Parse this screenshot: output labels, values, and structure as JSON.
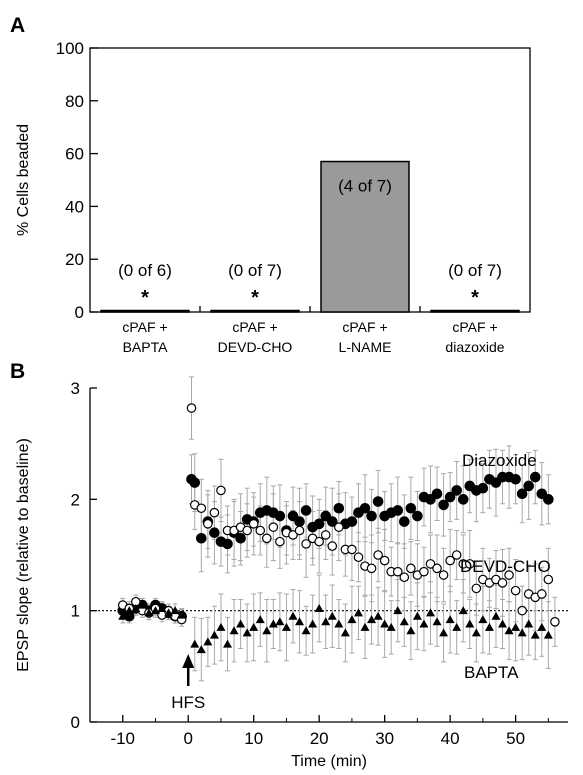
{
  "panels": {
    "a": "A",
    "b": "B"
  },
  "chart_data": [
    {
      "type": "bar",
      "panel": "A",
      "ylabel": "% Cells beaded",
      "ylim": [
        0,
        100
      ],
      "yticks": [
        "0",
        "20",
        "40",
        "60",
        "80",
        "100"
      ],
      "categories": [
        [
          "cPAF +",
          "BAPTA"
        ],
        [
          "cPAF +",
          "DEVD-CHO"
        ],
        [
          "cPAF +",
          "L-NAME"
        ],
        [
          "cPAF +",
          "diazoxide"
        ]
      ],
      "values": [
        0,
        0,
        57,
        0
      ],
      "annotations": [
        "(0 of 6)",
        "(0 of 7)",
        "(4 of 7)",
        "(0 of 7)"
      ],
      "significance": [
        "*",
        "*",
        "",
        "*"
      ],
      "colors": {
        "bar": "#9a9a9a",
        "edge": "#000000"
      }
    },
    {
      "type": "scatter",
      "panel": "B",
      "xlabel": "Time (min)",
      "ylabel": "EPSP slope (relative to baseline)",
      "xlim": [
        -15,
        58
      ],
      "ylim": [
        0,
        3
      ],
      "xticks": [
        "-10",
        "0",
        "10",
        "20",
        "30",
        "40",
        "50"
      ],
      "yticks": [
        "0",
        "1",
        "2",
        "3"
      ],
      "baseline": 1,
      "arrow_label": "HFS",
      "arrow_at": 0,
      "series": [
        {
          "name": "Diazoxide",
          "marker": "filled-circle",
          "x": [
            -10,
            -9,
            -8,
            -7,
            -6,
            -5,
            -4,
            -3,
            -2,
            -1,
            0.5,
            1,
            2,
            3,
            4,
            5,
            6,
            7,
            8,
            9,
            10,
            11,
            12,
            13,
            14,
            15,
            16,
            17,
            18,
            19,
            20,
            21,
            22,
            23,
            24,
            25,
            26,
            27,
            28,
            29,
            30,
            31,
            32,
            33,
            34,
            35,
            36,
            37,
            38,
            39,
            40,
            41,
            42,
            43,
            44,
            45,
            46,
            47,
            48,
            49,
            50,
            51,
            52,
            53,
            54,
            55
          ],
          "y": [
            1.0,
            0.95,
            1.02,
            1.05,
            1.0,
            1.05,
            1.02,
            0.98,
            0.95,
            0.95,
            2.18,
            2.15,
            1.65,
            1.8,
            1.7,
            1.62,
            1.6,
            1.7,
            1.65,
            1.82,
            1.8,
            1.88,
            1.9,
            1.88,
            1.85,
            1.72,
            1.85,
            1.8,
            1.9,
            1.75,
            1.78,
            1.85,
            1.8,
            1.92,
            1.78,
            1.8,
            1.88,
            1.92,
            1.85,
            1.98,
            1.85,
            1.88,
            1.9,
            1.8,
            1.92,
            1.85,
            2.02,
            2.0,
            2.05,
            1.95,
            2.02,
            2.08,
            2.0,
            2.12,
            2.08,
            2.1,
            2.18,
            2.15,
            2.2,
            2.2,
            2.18,
            2.05,
            2.12,
            2.2,
            2.05,
            2.0
          ]
        },
        {
          "name": "DEVD-CHO",
          "marker": "open-circle",
          "x": [
            -10,
            -9,
            -8,
            -7,
            -6,
            -5,
            -4,
            -3,
            -2,
            -1,
            0.5,
            1,
            2,
            3,
            4,
            5,
            6,
            7,
            8,
            9,
            10,
            11,
            12,
            13,
            14,
            15,
            16,
            17,
            18,
            19,
            20,
            21,
            22,
            23,
            24,
            25,
            26,
            27,
            28,
            29,
            30,
            31,
            32,
            33,
            34,
            35,
            36,
            37,
            38,
            39,
            40,
            41,
            42,
            43,
            44,
            45,
            46,
            47,
            48,
            49,
            50,
            51,
            52,
            53,
            54,
            55,
            56
          ],
          "y": [
            1.05,
            1.02,
            1.08,
            1.0,
            0.98,
            1.02,
            0.96,
            1.0,
            0.95,
            0.92,
            2.82,
            1.95,
            1.92,
            1.78,
            1.88,
            2.08,
            1.72,
            1.72,
            1.75,
            1.72,
            1.78,
            1.72,
            1.65,
            1.75,
            1.62,
            1.7,
            1.68,
            1.72,
            1.6,
            1.65,
            1.62,
            1.68,
            1.58,
            1.75,
            1.55,
            1.55,
            1.48,
            1.4,
            1.38,
            1.5,
            1.45,
            1.35,
            1.35,
            1.3,
            1.38,
            1.32,
            1.35,
            1.42,
            1.38,
            1.32,
            1.45,
            1.5,
            1.42,
            1.42,
            1.2,
            1.28,
            1.25,
            1.28,
            1.25,
            1.32,
            1.18,
            1.0,
            1.15,
            1.12,
            1.15,
            1.28,
            0.9
          ]
        },
        {
          "name": "BAPTA",
          "marker": "filled-triangle",
          "x": [
            -10,
            -9,
            -8,
            -7,
            -6,
            -5,
            -4,
            -3,
            -2,
            -1,
            1,
            2,
            3,
            4,
            5,
            6,
            7,
            8,
            9,
            10,
            11,
            12,
            13,
            14,
            15,
            16,
            17,
            18,
            19,
            20,
            21,
            22,
            23,
            24,
            25,
            26,
            27,
            28,
            29,
            30,
            31,
            32,
            33,
            34,
            35,
            36,
            37,
            38,
            39,
            40,
            41,
            42,
            43,
            44,
            45,
            46,
            47,
            48,
            49,
            50,
            51,
            52,
            53,
            54,
            55
          ],
          "y": [
            0.95,
            1.0,
            1.02,
            1.05,
            0.98,
            1.0,
            1.02,
            0.98,
            1.0,
            0.96,
            0.7,
            0.65,
            0.72,
            0.78,
            0.85,
            0.7,
            0.82,
            0.88,
            0.8,
            0.85,
            0.92,
            0.82,
            0.88,
            0.9,
            0.85,
            0.95,
            0.9,
            0.82,
            0.88,
            1.02,
            0.9,
            0.95,
            0.88,
            0.8,
            0.92,
            0.98,
            0.85,
            0.92,
            0.95,
            0.88,
            0.85,
            1.0,
            0.9,
            0.82,
            0.95,
            0.88,
            0.98,
            0.9,
            0.8,
            0.92,
            0.85,
            1.0,
            0.88,
            0.8,
            0.92,
            0.85,
            0.95,
            0.88,
            0.82,
            0.85,
            0.8,
            0.88,
            0.78,
            0.85,
            0.78
          ]
        }
      ],
      "colors": {
        "errorbar": "#a8a8a8",
        "marker": "#000000"
      }
    }
  ]
}
